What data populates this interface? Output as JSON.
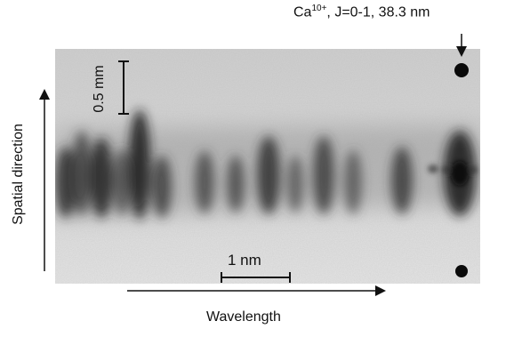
{
  "figure": {
    "top_annotation": {
      "ion": "Ca",
      "charge": "10+",
      "rest": ", J=0-1, 38.3 nm"
    },
    "vertical_scale_label": "0.5 mm",
    "horizontal_scale_label": "1 nm",
    "x_axis_label": "Wavelength",
    "y_axis_label": "Spatial direction"
  },
  "colors": {
    "background": "#ffffff",
    "film": "#d9d9d9",
    "ink": "#111111"
  }
}
